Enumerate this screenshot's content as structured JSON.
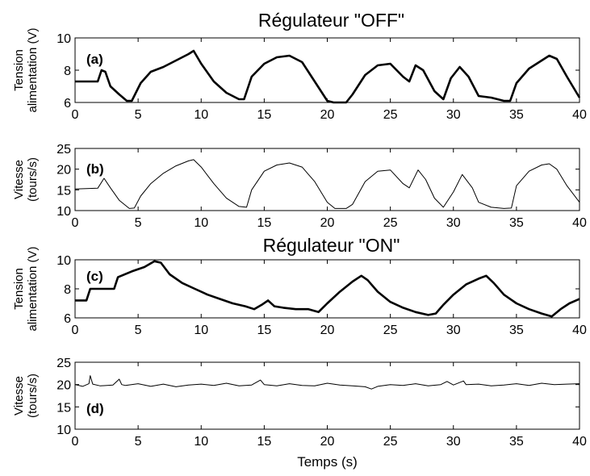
{
  "chart_data": [
    {
      "type": "line",
      "panel": "(a)",
      "title": "Régulateur \"OFF\"",
      "ylabel": [
        "Tension",
        "alimentation (V)"
      ],
      "xlabel": "",
      "xlim": [
        0,
        40
      ],
      "ylim": [
        6,
        10
      ],
      "xticks": [
        0,
        5,
        10,
        15,
        20,
        25,
        30,
        35,
        40
      ],
      "yticks": [
        6,
        8,
        10
      ],
      "line_weight": "thick",
      "series": [
        {
          "x": [
            0,
            1.8,
            2.1,
            2.4,
            2.8,
            3.5,
            4.1,
            4.5,
            5.2,
            6,
            7,
            8,
            9,
            9.4,
            10,
            11,
            12,
            13,
            13.4,
            14,
            15,
            16,
            17,
            18,
            19,
            20,
            20.5,
            21.5,
            22,
            23,
            24,
            25,
            26,
            26.5,
            27,
            27.6,
            28.5,
            29.2,
            29.8,
            30.5,
            31.2,
            32,
            33,
            34,
            34.5,
            35,
            36,
            37,
            37.6,
            38.2,
            39,
            40
          ],
          "y": [
            7.3,
            7.3,
            8.0,
            7.9,
            7.0,
            6.5,
            6.1,
            6.1,
            7.2,
            7.9,
            8.2,
            8.6,
            9.0,
            9.2,
            8.4,
            7.3,
            6.6,
            6.2,
            6.2,
            7.6,
            8.4,
            8.8,
            8.9,
            8.5,
            7.3,
            6.1,
            6.0,
            6.0,
            6.5,
            7.7,
            8.3,
            8.4,
            7.6,
            7.3,
            8.3,
            8.0,
            6.7,
            6.2,
            7.5,
            8.2,
            7.6,
            6.4,
            6.3,
            6.1,
            6.1,
            7.2,
            8.1,
            8.6,
            8.9,
            8.7,
            7.6,
            6.3
          ]
        }
      ]
    },
    {
      "type": "line",
      "panel": "(b)",
      "title": "",
      "ylabel": [
        "Vitesse",
        "(tours/s)"
      ],
      "xlabel": "",
      "xlim": [
        0,
        40
      ],
      "ylim": [
        10,
        25
      ],
      "xticks": [
        0,
        5,
        10,
        15,
        20,
        25,
        30,
        35,
        40
      ],
      "yticks": [
        10,
        15,
        20,
        25
      ],
      "line_weight": "thin",
      "series": [
        {
          "x": [
            0,
            1.8,
            2.3,
            2.8,
            3.5,
            4.3,
            4.7,
            5.2,
            6,
            7,
            8,
            9,
            9.4,
            10,
            11,
            12,
            13,
            13.6,
            14,
            15,
            16,
            17,
            18,
            19,
            20,
            20.6,
            21.5,
            22,
            23,
            24,
            25,
            26,
            26.5,
            27.2,
            27.8,
            28.5,
            29.2,
            30,
            30.7,
            31.5,
            32,
            33,
            34,
            34.6,
            35,
            36,
            37,
            37.6,
            38.2,
            39,
            40
          ],
          "y": [
            15.2,
            15.4,
            17.8,
            15.5,
            12.5,
            10.5,
            10.6,
            13.5,
            16.5,
            19,
            20.8,
            22,
            22.3,
            20.5,
            16.5,
            13,
            11,
            10.8,
            15,
            19.5,
            21,
            21.5,
            20.5,
            17,
            12,
            10.5,
            10.5,
            11.5,
            17,
            19.5,
            19.8,
            16.5,
            15.5,
            19.8,
            17.5,
            13,
            10.8,
            14.5,
            18.7,
            15.5,
            12,
            10.8,
            10.5,
            10.6,
            16,
            19.5,
            21,
            21.3,
            20,
            16,
            12
          ]
        }
      ]
    },
    {
      "type": "line",
      "panel": "(c)",
      "title": "Régulateur \"ON\"",
      "ylabel": [
        "Tension",
        "alimentation (V)"
      ],
      "xlabel": "",
      "xlim": [
        0,
        40
      ],
      "ylim": [
        6,
        10
      ],
      "xticks": [
        0,
        5,
        10,
        15,
        20,
        25,
        30,
        35,
        40
      ],
      "yticks": [
        6,
        8,
        10
      ],
      "line_weight": "thick",
      "series": [
        {
          "x": [
            0,
            0.9,
            1.2,
            2,
            3.1,
            3.4,
            4.5,
            5.5,
            6.3,
            6.8,
            7.5,
            8.5,
            9.5,
            10.5,
            11.5,
            12.5,
            13.5,
            14.2,
            14.8,
            15.3,
            15.8,
            16.5,
            17.5,
            18.5,
            19.3,
            20,
            21,
            22,
            22.7,
            23.2,
            24,
            25,
            26,
            27,
            28,
            28.6,
            29.2,
            30,
            31,
            32,
            32.6,
            33.2,
            34,
            35,
            36,
            37,
            37.8,
            38.5,
            39.2,
            40
          ],
          "y": [
            7.2,
            7.2,
            8.0,
            8.0,
            8.0,
            8.8,
            9.2,
            9.5,
            9.9,
            9.8,
            9.0,
            8.4,
            8.0,
            7.6,
            7.3,
            7.0,
            6.8,
            6.6,
            6.9,
            7.2,
            6.8,
            6.7,
            6.6,
            6.6,
            6.4,
            7.0,
            7.8,
            8.5,
            8.9,
            8.6,
            7.8,
            7.1,
            6.7,
            6.4,
            6.2,
            6.3,
            6.9,
            7.6,
            8.3,
            8.7,
            8.9,
            8.4,
            7.6,
            7.0,
            6.6,
            6.3,
            6.1,
            6.6,
            7.0,
            7.3
          ]
        }
      ]
    },
    {
      "type": "line",
      "panel": "(d)",
      "title": "",
      "ylabel": [
        "Vitesse",
        "(tours/s)"
      ],
      "xlabel": "Temps (s)",
      "xlim": [
        0,
        40
      ],
      "ylim": [
        10,
        25
      ],
      "xticks": [
        0,
        5,
        10,
        15,
        20,
        25,
        30,
        35,
        40
      ],
      "yticks": [
        10,
        15,
        20,
        25
      ],
      "line_weight": "thin",
      "series": [
        {
          "x": [
            0,
            0.6,
            1.1,
            1.2,
            1.4,
            2,
            3,
            3.5,
            3.7,
            4,
            5,
            6,
            7,
            8,
            9,
            10,
            11,
            12,
            13,
            14,
            14.7,
            15,
            16,
            17,
            18,
            19,
            20,
            21,
            22,
            23,
            23.5,
            24,
            25,
            26,
            27,
            28,
            29,
            29.5,
            30,
            30.8,
            31,
            32,
            33,
            34,
            35,
            36,
            37,
            38,
            39,
            40
          ],
          "y": [
            20,
            19.6,
            20.2,
            22.0,
            20.1,
            19.7,
            19.9,
            21.2,
            20.0,
            19.8,
            20.2,
            19.6,
            20.1,
            19.5,
            19.9,
            20.1,
            19.8,
            20.3,
            19.7,
            19.9,
            21.0,
            20.0,
            19.7,
            20.2,
            19.8,
            19.7,
            20.3,
            19.9,
            19.7,
            19.5,
            19.0,
            19.6,
            20.0,
            19.8,
            20.2,
            19.7,
            20.0,
            20.7,
            19.9,
            20.8,
            20.0,
            20.1,
            19.7,
            19.9,
            20.2,
            19.8,
            20.3,
            20.0,
            20.1,
            20.2
          ]
        }
      ]
    }
  ]
}
